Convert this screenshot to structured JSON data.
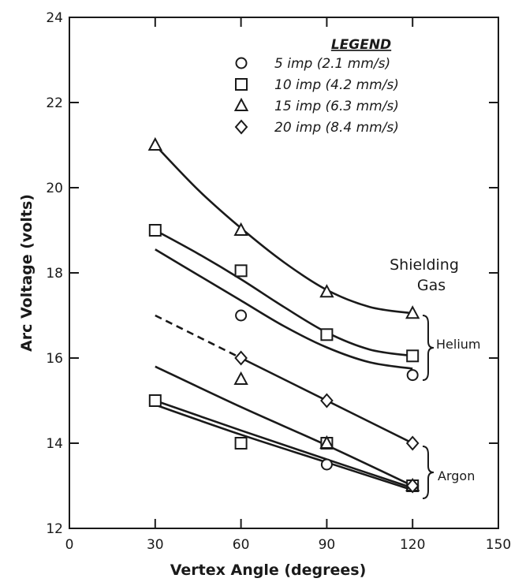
{
  "chart_data": {
    "type": "scatter",
    "xlabel": "Vertex Angle (degrees)",
    "ylabel": "Arc Voltage (volts)",
    "xlim": [
      0,
      150
    ],
    "ylim": [
      12,
      24
    ],
    "x_ticks": [
      0,
      30,
      60,
      90,
      120,
      150
    ],
    "y_ticks": [
      12,
      14,
      16,
      18,
      20,
      22,
      24
    ],
    "x_tick_labels": [
      "0",
      "30",
      "60",
      "90",
      "120",
      "150"
    ],
    "y_tick_labels": [
      "12",
      "14",
      "16",
      "18",
      "20",
      "22",
      "24"
    ],
    "grid": false,
    "legend_position": "top-right",
    "legend_title": "LEGEND",
    "series": [
      {
        "name": "5 imp (2.1 mm/s)",
        "marker": "circle",
        "points": [
          {
            "x": 30,
            "y": 15.0
          },
          {
            "x": 60,
            "y": 17.0
          },
          {
            "x": 90,
            "y": 16.55
          },
          {
            "x": 120,
            "y": 15.6
          },
          {
            "x": 90,
            "y": 13.5
          },
          {
            "x": 120,
            "y": 13.0
          }
        ]
      },
      {
        "name": "10 imp (4.2 mm/s)",
        "marker": "square",
        "points": [
          {
            "x": 30,
            "y": 19.0
          },
          {
            "x": 60,
            "y": 18.05
          },
          {
            "x": 90,
            "y": 16.55
          },
          {
            "x": 120,
            "y": 16.05
          },
          {
            "x": 30,
            "y": 15.0
          },
          {
            "x": 60,
            "y": 14.0
          },
          {
            "x": 90,
            "y": 14.0
          },
          {
            "x": 120,
            "y": 13.0
          }
        ]
      },
      {
        "name": "15 imp (6.3 mm/s)",
        "marker": "triangle",
        "points": [
          {
            "x": 30,
            "y": 21.0
          },
          {
            "x": 60,
            "y": 19.0
          },
          {
            "x": 90,
            "y": 17.55
          },
          {
            "x": 120,
            "y": 17.05
          },
          {
            "x": 60,
            "y": 15.5
          },
          {
            "x": 90,
            "y": 14.0
          },
          {
            "x": 120,
            "y": 13.0
          }
        ]
      },
      {
        "name": "20 imp (8.4 mm/s)",
        "marker": "diamond",
        "points": [
          {
            "x": 60,
            "y": 16.0
          },
          {
            "x": 90,
            "y": 15.0
          },
          {
            "x": 120,
            "y": 14.0
          },
          {
            "x": 120,
            "y": 13.0
          }
        ]
      }
    ],
    "curves": [
      {
        "gas": "Helium",
        "style": "solid",
        "points": [
          [
            30,
            21.0
          ],
          [
            45,
            19.95
          ],
          [
            60,
            19.05
          ],
          [
            75,
            18.25
          ],
          [
            90,
            17.6
          ],
          [
            105,
            17.2
          ],
          [
            120,
            17.05
          ]
        ]
      },
      {
        "gas": "Helium",
        "style": "solid",
        "points": [
          [
            30,
            19.0
          ],
          [
            45,
            18.45
          ],
          [
            60,
            17.85
          ],
          [
            75,
            17.2
          ],
          [
            90,
            16.6
          ],
          [
            105,
            16.2
          ],
          [
            120,
            16.05
          ]
        ]
      },
      {
        "gas": "Helium",
        "style": "solid",
        "points": [
          [
            30,
            18.55
          ],
          [
            45,
            17.95
          ],
          [
            60,
            17.35
          ],
          [
            75,
            16.75
          ],
          [
            90,
            16.25
          ],
          [
            105,
            15.9
          ],
          [
            120,
            15.75
          ]
        ]
      },
      {
        "gas": "Helium",
        "style": "dashed",
        "points": [
          [
            30,
            17.0
          ],
          [
            60,
            16.0
          ]
        ]
      },
      {
        "gas": "Helium",
        "style": "solid",
        "points": [
          [
            60,
            16.0
          ],
          [
            90,
            15.0
          ],
          [
            120,
            14.0
          ]
        ]
      },
      {
        "gas": "Argon",
        "style": "solid",
        "points": [
          [
            30,
            15.8
          ],
          [
            60,
            14.85
          ],
          [
            90,
            13.95
          ],
          [
            120,
            13.0
          ]
        ]
      },
      {
        "gas": "Argon",
        "style": "solid",
        "points": [
          [
            30,
            15.0
          ],
          [
            60,
            14.3
          ],
          [
            90,
            13.62
          ],
          [
            120,
            12.95
          ]
        ]
      },
      {
        "gas": "Argon",
        "style": "solid",
        "points": [
          [
            30,
            14.9
          ],
          [
            60,
            14.2
          ],
          [
            90,
            13.55
          ],
          [
            120,
            12.9
          ]
        ]
      }
    ],
    "annotations": [
      {
        "text": "Shielding",
        "group": "shielding"
      },
      {
        "text": "Gas",
        "group": "shielding"
      },
      {
        "text": "Helium",
        "group": "helium"
      },
      {
        "text": "Argon",
        "group": "argon"
      }
    ]
  },
  "colors": {
    "ink": "#1a1a1a",
    "background": "#ffffff"
  }
}
